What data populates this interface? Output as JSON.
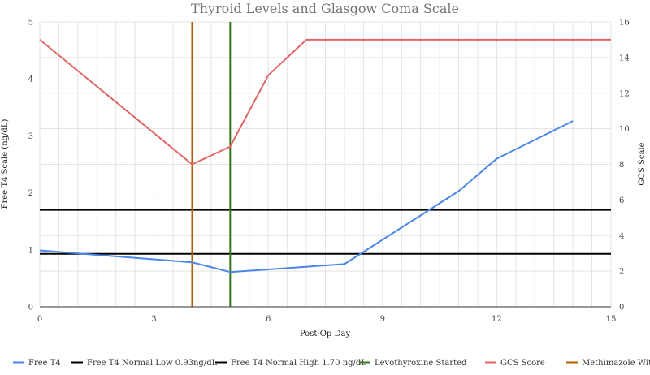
{
  "chart_data": {
    "type": "line",
    "title": "Thyroid Levels and Glasgow Coma Scale",
    "xlabel": "Post-Op Day",
    "ylabel_left": "Free T4 Scale (ng/dL)",
    "ylabel_right": "GCS Scale",
    "xlim": [
      0,
      15
    ],
    "xticks": [
      0,
      3,
      6,
      9,
      12,
      15
    ],
    "ylim_left": [
      0,
      5
    ],
    "yticks_left": [
      0,
      1,
      2,
      3,
      4,
      5
    ],
    "ylim_right": [
      0,
      16
    ],
    "yticks_right": [
      0,
      2,
      4,
      6,
      8,
      10,
      12,
      14,
      16
    ],
    "grid": true,
    "legend_position": "bottom",
    "series": [
      {
        "name": "Free T4",
        "axis": "left",
        "kind": "line",
        "color": "#4a86e8",
        "points": [
          [
            0,
            0.99
          ],
          [
            4,
            0.78
          ],
          [
            5,
            0.61
          ],
          [
            8,
            0.75
          ],
          [
            11,
            2.03
          ],
          [
            12,
            2.6
          ],
          [
            14,
            3.26
          ]
        ]
      },
      {
        "name": "Free T4 Normal Low 0.93ng/dL",
        "axis": "left",
        "kind": "hline",
        "color": "#000000",
        "value": 0.93
      },
      {
        "name": "Free T4 Normal High 1.70 ng/dL",
        "axis": "left",
        "kind": "hline",
        "color": "#000000",
        "value": 1.7
      },
      {
        "name": "Levothyroxine Started",
        "axis": "x",
        "kind": "vline",
        "color": "#38761d",
        "value": 5
      },
      {
        "name": "GCS Score",
        "axis": "right",
        "kind": "line",
        "color": "#e06666",
        "points": [
          [
            0,
            15
          ],
          [
            4,
            8
          ],
          [
            5,
            9
          ],
          [
            6,
            13
          ],
          [
            7,
            15
          ],
          [
            15,
            15
          ]
        ]
      },
      {
        "name": "Methimazole Witheld",
        "axis": "x",
        "kind": "vline",
        "color": "#b45f06",
        "value": 4
      }
    ]
  }
}
